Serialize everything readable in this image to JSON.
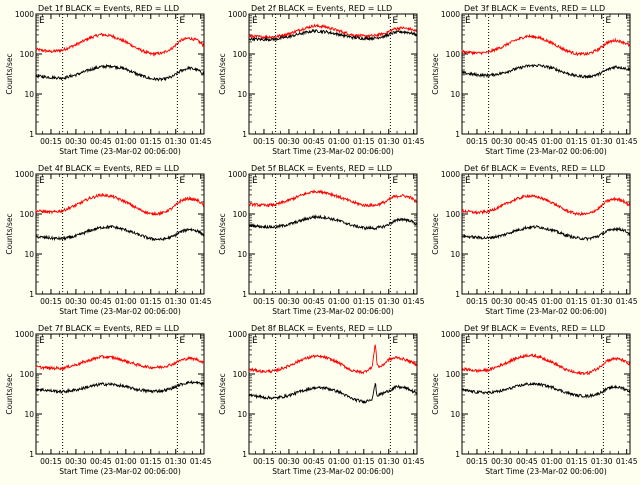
{
  "chart_data": [
    {
      "type": "line",
      "title": "Det 1f BLACK = Events, RED = LLD",
      "xlabel": "Start Time (23-Mar-02 00:06:00)",
      "ylabel": "Counts/sec",
      "yscale": "log",
      "ylim": [
        1,
        1000
      ],
      "yticks": [
        "1",
        "10",
        "100",
        "1000"
      ],
      "xlim": [
        "00:06",
        "01:47"
      ],
      "xticks": [
        "00:15",
        "00:30",
        "00:45",
        "01:00",
        "01:15",
        "01:30",
        "01:45"
      ],
      "vlines": [
        "00:22",
        "01:31"
      ],
      "markers": [
        "E",
        "E"
      ],
      "series": [
        {
          "color": "#ff0000",
          "x": [
            "00:06",
            "00:15",
            "00:22",
            "00:30",
            "00:38",
            "00:45",
            "00:52",
            "01:00",
            "01:08",
            "01:15",
            "01:22",
            "01:28",
            "01:33",
            "01:38",
            "01:43",
            "01:47"
          ],
          "y": [
            130,
            115,
            125,
            170,
            250,
            310,
            280,
            200,
            130,
            100,
            105,
            140,
            220,
            250,
            220,
            160
          ]
        },
        {
          "color": "#000000",
          "x": [
            "00:06",
            "00:15",
            "00:22",
            "00:30",
            "00:38",
            "00:45",
            "00:52",
            "01:00",
            "01:08",
            "01:15",
            "01:22",
            "01:28",
            "01:33",
            "01:38",
            "01:43",
            "01:47"
          ],
          "y": [
            28,
            26,
            25,
            30,
            40,
            48,
            50,
            42,
            30,
            24,
            23,
            27,
            38,
            45,
            40,
            32
          ]
        }
      ]
    },
    {
      "type": "line",
      "title": "Det 2f BLACK = Events, RED = LLD",
      "xlabel": "Start Time (23-Mar-02 00:06:00)",
      "ylabel": "Counts/sec",
      "yscale": "log",
      "ylim": [
        1,
        1000
      ],
      "yticks": [
        "1",
        "10",
        "100",
        "1000"
      ],
      "xlim": [
        "00:06",
        "01:47"
      ],
      "xticks": [
        "00:15",
        "00:30",
        "00:45",
        "01:00",
        "01:15",
        "01:30",
        "01:45"
      ],
      "vlines": [
        "00:22",
        "01:31"
      ],
      "markers": [
        "E",
        "E"
      ],
      "series": [
        {
          "color": "#ff0000",
          "x": [
            "00:06",
            "00:15",
            "00:22",
            "00:30",
            "00:38",
            "00:45",
            "00:52",
            "01:00",
            "01:08",
            "01:15",
            "01:22",
            "01:28",
            "01:33",
            "01:38",
            "01:43",
            "01:47"
          ],
          "y": [
            280,
            265,
            270,
            320,
            420,
            510,
            480,
            380,
            300,
            280,
            290,
            330,
            420,
            450,
            420,
            360
          ]
        },
        {
          "color": "#000000",
          "x": [
            "00:06",
            "00:15",
            "00:22",
            "00:30",
            "00:38",
            "00:45",
            "00:52",
            "01:00",
            "01:08",
            "01:15",
            "01:22",
            "01:28",
            "01:33",
            "01:38",
            "01:43",
            "01:47"
          ],
          "y": [
            240,
            230,
            235,
            270,
            330,
            380,
            360,
            310,
            260,
            245,
            250,
            280,
            340,
            360,
            340,
            300
          ]
        }
      ]
    },
    {
      "type": "line",
      "title": "Det 3f BLACK = Events, RED = LLD",
      "xlabel": "Start Time (23-Mar-02 00:06:00)",
      "ylabel": "Counts/sec",
      "yscale": "log",
      "ylim": [
        1,
        1000
      ],
      "yticks": [
        "1",
        "10",
        "100",
        "1000"
      ],
      "xlim": [
        "00:06",
        "01:47"
      ],
      "xticks": [
        "00:15",
        "00:30",
        "00:45",
        "01:00",
        "01:15",
        "01:30",
        "01:45"
      ],
      "vlines": [
        "00:22",
        "01:31"
      ],
      "markers": [
        "E",
        "E"
      ],
      "series": [
        {
          "color": "#ff0000",
          "x": [
            "00:06",
            "00:15",
            "00:22",
            "00:30",
            "00:38",
            "00:45",
            "00:52",
            "01:00",
            "01:08",
            "01:15",
            "01:22",
            "01:28",
            "01:33",
            "01:38",
            "01:43",
            "01:47"
          ],
          "y": [
            115,
            105,
            110,
            150,
            220,
            280,
            260,
            190,
            125,
            100,
            100,
            130,
            190,
            220,
            200,
            160
          ]
        },
        {
          "color": "#000000",
          "x": [
            "00:06",
            "00:15",
            "00:22",
            "00:30",
            "00:38",
            "00:45",
            "00:52",
            "01:00",
            "01:08",
            "01:15",
            "01:22",
            "01:28",
            "01:33",
            "01:38",
            "01:43",
            "01:47"
          ],
          "y": [
            34,
            30,
            29,
            33,
            42,
            50,
            52,
            45,
            34,
            28,
            27,
            31,
            40,
            48,
            45,
            40
          ]
        }
      ]
    },
    {
      "type": "line",
      "title": "Det 4f BLACK = Events, RED = LLD",
      "xlabel": "Start Time (23-Mar-02 00:06:00)",
      "ylabel": "Counts/sec",
      "yscale": "log",
      "ylim": [
        1,
        1000
      ],
      "yticks": [
        "1",
        "10",
        "100",
        "1000"
      ],
      "xlim": [
        "00:06",
        "01:47"
      ],
      "xticks": [
        "00:15",
        "00:30",
        "00:45",
        "01:00",
        "01:15",
        "01:30",
        "01:45"
      ],
      "vlines": [
        "00:22",
        "01:31"
      ],
      "markers": [
        "E",
        "E"
      ],
      "series": [
        {
          "color": "#ff0000",
          "x": [
            "00:06",
            "00:15",
            "00:22",
            "00:30",
            "00:38",
            "00:45",
            "00:52",
            "01:00",
            "01:08",
            "01:15",
            "01:22",
            "01:28",
            "01:33",
            "01:38",
            "01:43",
            "01:47"
          ],
          "y": [
            120,
            110,
            120,
            165,
            245,
            300,
            275,
            200,
            130,
            100,
            105,
            140,
            215,
            245,
            220,
            165
          ]
        },
        {
          "color": "#000000",
          "x": [
            "00:06",
            "00:15",
            "00:22",
            "00:30",
            "00:38",
            "00:45",
            "00:52",
            "01:00",
            "01:08",
            "01:15",
            "01:22",
            "01:28",
            "01:33",
            "01:38",
            "01:43",
            "01:47"
          ],
          "y": [
            27,
            25,
            24,
            28,
            38,
            46,
            48,
            40,
            30,
            24,
            23,
            27,
            36,
            42,
            38,
            30
          ]
        }
      ]
    },
    {
      "type": "line",
      "title": "Det 5f BLACK = Events, RED = LLD",
      "xlabel": "Start Time (23-Mar-02 00:06:00)",
      "ylabel": "Counts/sec",
      "yscale": "log",
      "ylim": [
        1,
        1000
      ],
      "yticks": [
        "1",
        "10",
        "100",
        "1000"
      ],
      "xlim": [
        "00:06",
        "01:47"
      ],
      "xticks": [
        "00:15",
        "00:30",
        "00:45",
        "01:00",
        "01:15",
        "01:30",
        "01:45"
      ],
      "vlines": [
        "00:22",
        "01:31"
      ],
      "markers": [
        "E",
        "E"
      ],
      "series": [
        {
          "color": "#ff0000",
          "x": [
            "00:06",
            "00:15",
            "00:22",
            "00:30",
            "00:38",
            "00:45",
            "00:52",
            "01:00",
            "01:08",
            "01:15",
            "01:22",
            "01:28",
            "01:33",
            "01:38",
            "01:43",
            "01:47"
          ],
          "y": [
            175,
            165,
            170,
            220,
            300,
            370,
            350,
            270,
            200,
            165,
            165,
            200,
            270,
            290,
            260,
            200
          ]
        },
        {
          "color": "#000000",
          "x": [
            "00:06",
            "00:15",
            "00:22",
            "00:30",
            "00:38",
            "00:45",
            "00:52",
            "01:00",
            "01:08",
            "01:15",
            "01:22",
            "01:28",
            "01:33",
            "01:38",
            "01:43",
            "01:47"
          ],
          "y": [
            52,
            48,
            47,
            55,
            70,
            85,
            82,
            68,
            52,
            45,
            44,
            50,
            65,
            75,
            68,
            55
          ]
        }
      ]
    },
    {
      "type": "line",
      "title": "Det 6f BLACK = Events, RED = LLD",
      "xlabel": "Start Time (23-Mar-02 00:06:00)",
      "ylabel": "Counts/sec",
      "yscale": "log",
      "ylim": [
        1,
        1000
      ],
      "yticks": [
        "1",
        "10",
        "100",
        "1000"
      ],
      "xlim": [
        "00:06",
        "01:47"
      ],
      "xticks": [
        "00:15",
        "00:30",
        "00:45",
        "01:00",
        "01:15",
        "01:30",
        "01:45"
      ],
      "vlines": [
        "00:22",
        "01:31"
      ],
      "markers": [
        "E",
        "E"
      ],
      "series": [
        {
          "color": "#ff0000",
          "x": [
            "00:06",
            "00:15",
            "00:22",
            "00:30",
            "00:38",
            "00:45",
            "00:52",
            "01:00",
            "01:08",
            "01:15",
            "01:22",
            "01:28",
            "01:33",
            "01:38",
            "01:43",
            "01:47"
          ],
          "y": [
            120,
            108,
            115,
            160,
            230,
            285,
            265,
            195,
            125,
            100,
            100,
            135,
            210,
            240,
            215,
            160
          ]
        },
        {
          "color": "#000000",
          "x": [
            "00:06",
            "00:15",
            "00:22",
            "00:30",
            "00:38",
            "00:45",
            "00:52",
            "01:00",
            "01:08",
            "01:15",
            "01:22",
            "01:28",
            "01:33",
            "01:38",
            "01:43",
            "01:47"
          ],
          "y": [
            28,
            26,
            25,
            29,
            38,
            46,
            48,
            40,
            30,
            25,
            24,
            28,
            37,
            43,
            40,
            32
          ]
        }
      ]
    },
    {
      "type": "line",
      "title": "Det 7f BLACK = Events, RED = LLD",
      "xlabel": "Start Time (23-Mar-02 00:06:00)",
      "ylabel": "Counts/sec",
      "yscale": "log",
      "ylim": [
        1,
        1000
      ],
      "yticks": [
        "1",
        "10",
        "100",
        "1000"
      ],
      "xlim": [
        "00:06",
        "01:47"
      ],
      "xticks": [
        "00:15",
        "00:30",
        "00:45",
        "01:00",
        "01:15",
        "01:30",
        "01:45"
      ],
      "vlines": [
        "00:22",
        "01:31"
      ],
      "markers": [
        "E",
        "E"
      ],
      "series": [
        {
          "color": "#ff0000",
          "x": [
            "00:06",
            "00:15",
            "00:22",
            "00:30",
            "00:38",
            "00:45",
            "00:52",
            "01:00",
            "01:08",
            "01:15",
            "01:22",
            "01:28",
            "01:33",
            "01:38",
            "01:43",
            "01:47"
          ],
          "y": [
            150,
            140,
            140,
            170,
            220,
            270,
            260,
            210,
            165,
            145,
            150,
            175,
            220,
            250,
            230,
            190
          ]
        },
        {
          "color": "#000000",
          "x": [
            "00:06",
            "00:15",
            "00:22",
            "00:30",
            "00:38",
            "00:45",
            "00:52",
            "01:00",
            "01:08",
            "01:15",
            "01:22",
            "01:28",
            "01:33",
            "01:38",
            "01:43",
            "01:47"
          ],
          "y": [
            42,
            38,
            36,
            40,
            48,
            56,
            55,
            48,
            40,
            37,
            38,
            44,
            55,
            62,
            60,
            55
          ]
        }
      ]
    },
    {
      "type": "line",
      "title": "Det 8f BLACK = Events, RED = LLD",
      "xlabel": "Start Time (23-Mar-02 00:06:00)",
      "ylabel": "Counts/sec",
      "yscale": "log",
      "ylim": [
        1,
        1000
      ],
      "yticks": [
        "1",
        "10",
        "100",
        "1000"
      ],
      "xlim": [
        "00:06",
        "01:47"
      ],
      "xticks": [
        "00:15",
        "00:30",
        "00:45",
        "01:00",
        "01:15",
        "01:30",
        "01:45"
      ],
      "vlines": [
        "00:22",
        "01:31"
      ],
      "markers": [
        "E",
        "E"
      ],
      "series": [
        {
          "color": "#ff0000",
          "x": [
            "00:06",
            "00:15",
            "00:22",
            "00:30",
            "00:38",
            "00:45",
            "00:52",
            "01:00",
            "01:08",
            "01:15",
            "01:20",
            "01:22",
            "01:23",
            "01:24",
            "01:26",
            "01:30",
            "01:35",
            "01:40",
            "01:47"
          ],
          "y": [
            130,
            115,
            120,
            160,
            230,
            280,
            260,
            190,
            120,
            110,
            150,
            600,
            180,
            150,
            160,
            230,
            260,
            230,
            170
          ]
        },
        {
          "color": "#000000",
          "x": [
            "00:06",
            "00:15",
            "00:22",
            "00:30",
            "00:38",
            "00:45",
            "00:52",
            "01:00",
            "01:08",
            "01:15",
            "01:20",
            "01:22",
            "01:23",
            "01:24",
            "01:26",
            "01:30",
            "01:35",
            "01:40",
            "01:47"
          ],
          "y": [
            30,
            26,
            25,
            29,
            38,
            45,
            45,
            36,
            24,
            20,
            24,
            60,
            28,
            30,
            32,
            38,
            48,
            45,
            33
          ]
        }
      ]
    },
    {
      "type": "line",
      "title": "Det 9f BLACK = Events, RED = LLD",
      "xlabel": "Start Time (23-Mar-02 00:06:00)",
      "ylabel": "Counts/sec",
      "yscale": "log",
      "ylim": [
        1,
        1000
      ],
      "yticks": [
        "1",
        "10",
        "100",
        "1000"
      ],
      "xlim": [
        "00:06",
        "01:47"
      ],
      "xticks": [
        "00:15",
        "00:30",
        "00:45",
        "01:00",
        "01:15",
        "01:30",
        "01:45"
      ],
      "vlines": [
        "00:22",
        "01:31"
      ],
      "markers": [
        "E",
        "E"
      ],
      "series": [
        {
          "color": "#ff0000",
          "x": [
            "00:06",
            "00:15",
            "00:22",
            "00:30",
            "00:38",
            "00:45",
            "00:52",
            "01:00",
            "01:08",
            "01:15",
            "01:22",
            "01:28",
            "01:33",
            "01:38",
            "01:43",
            "01:47"
          ],
          "y": [
            135,
            120,
            125,
            170,
            240,
            295,
            275,
            200,
            130,
            105,
            105,
            140,
            215,
            245,
            220,
            165
          ]
        },
        {
          "color": "#000000",
          "x": [
            "00:06",
            "00:15",
            "00:22",
            "00:30",
            "00:38",
            "00:45",
            "00:52",
            "01:00",
            "01:08",
            "01:15",
            "01:22",
            "01:28",
            "01:33",
            "01:38",
            "01:43",
            "01:47"
          ],
          "y": [
            40,
            35,
            34,
            38,
            48,
            56,
            56,
            47,
            35,
            29,
            28,
            32,
            42,
            48,
            44,
            36
          ]
        }
      ]
    }
  ]
}
